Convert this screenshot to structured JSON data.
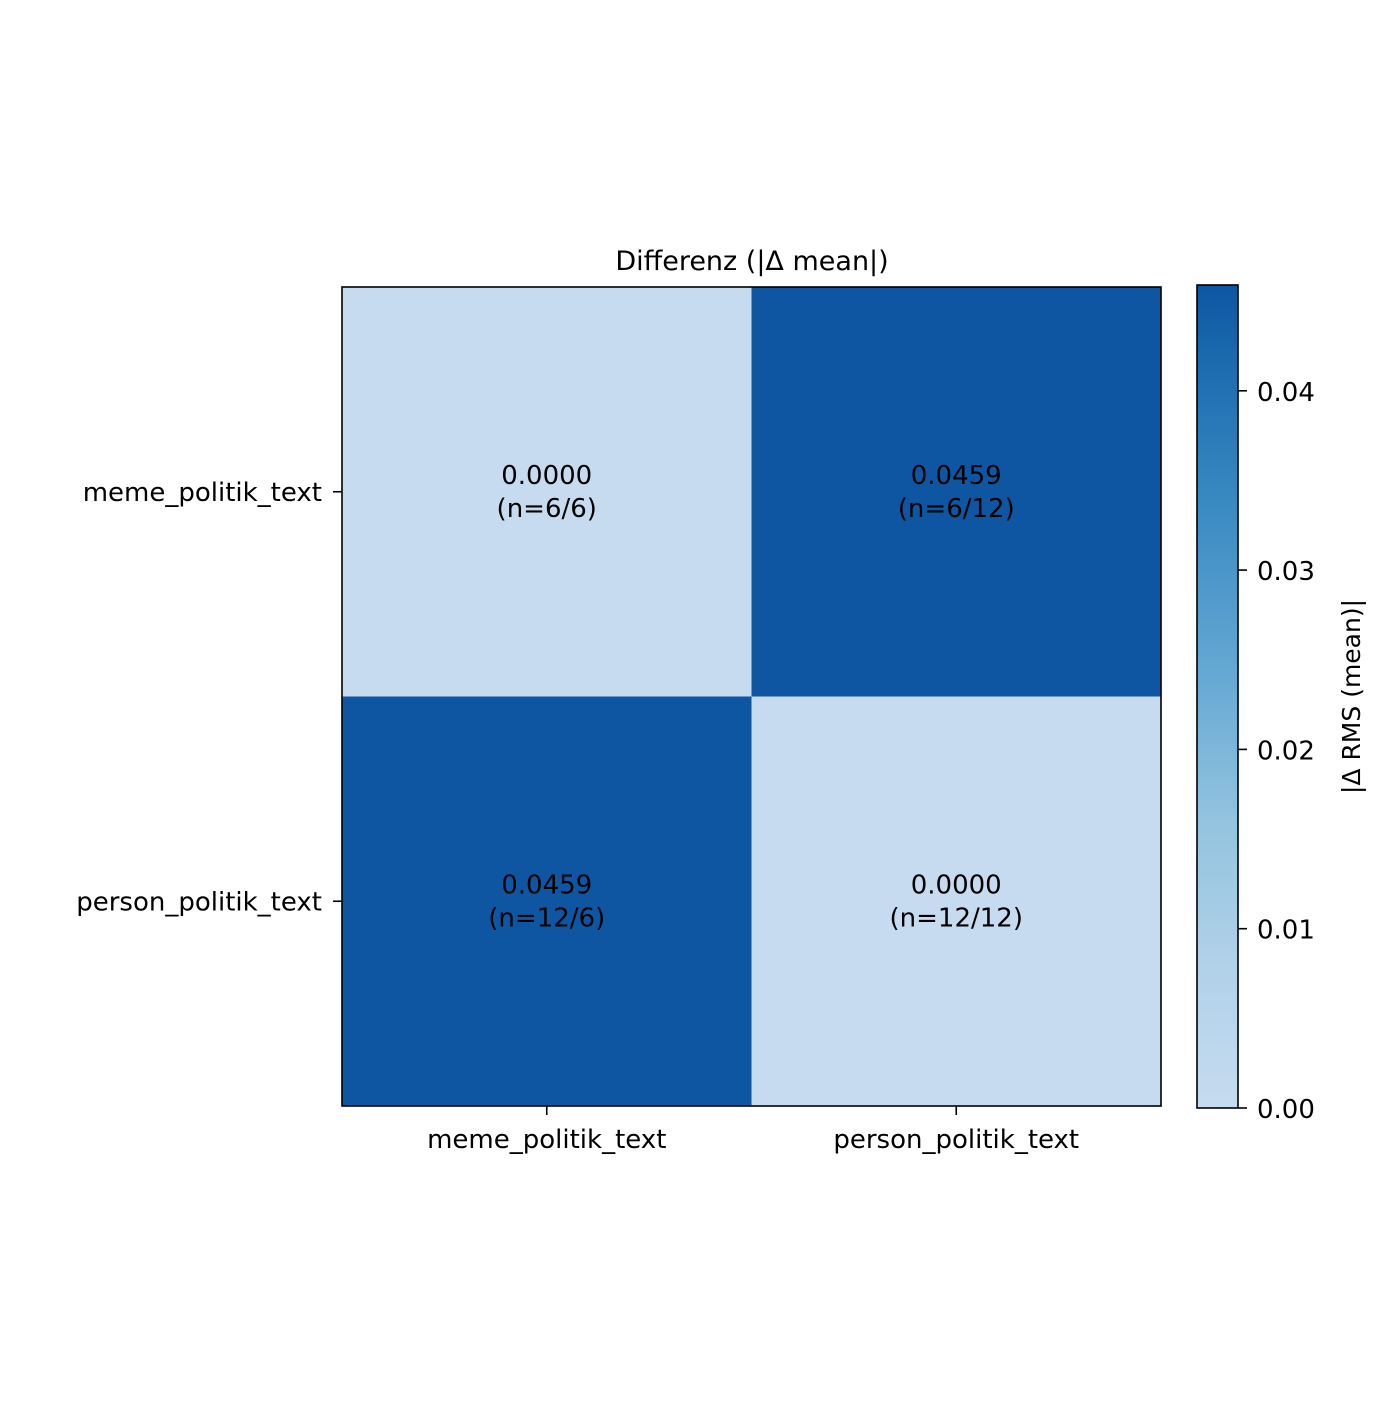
{
  "chart_data": {
    "type": "heatmap",
    "title": "Differenz (|Δ mean|)",
    "row_labels": [
      "meme_politik_text",
      "person_politik_text"
    ],
    "col_labels": [
      "meme_politik_text",
      "person_politik_text"
    ],
    "values": [
      [
        0.0,
        0.0459
      ],
      [
        0.0459,
        0.0
      ]
    ],
    "cells": [
      [
        {
          "value_label": "0.0000",
          "n_label": "(n=6/6)"
        },
        {
          "value_label": "0.0459",
          "n_label": "(n=6/12)"
        }
      ],
      [
        {
          "value_label": "0.0459",
          "n_label": "(n=12/6)"
        },
        {
          "value_label": "0.0000",
          "n_label": "(n=12/12)"
        }
      ]
    ],
    "colorbar": {
      "label": "|Δ RMS (mean)|",
      "range": [
        0,
        0.0459
      ],
      "ticks": [
        0.0,
        0.01,
        0.02,
        0.03,
        0.04
      ],
      "tick_labels": [
        "0.00",
        "0.01",
        "0.02",
        "0.03",
        "0.04"
      ],
      "colormap": "Blues",
      "low_color": "#c6dbef",
      "high_color": "#0e56a1"
    }
  }
}
